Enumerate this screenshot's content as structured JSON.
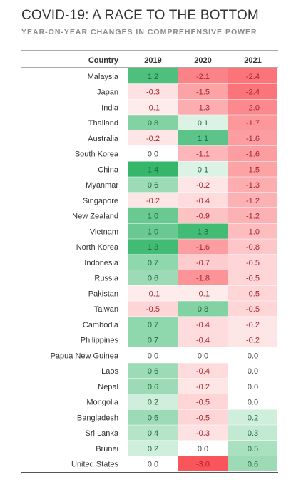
{
  "title": "COVID-19: A RACE TO THE BOTTOM",
  "subtitle": "YEAR-ON-YEAR CHANGES IN COMPREHENSIVE POWER",
  "chart_data": {
    "type": "heatmap",
    "row_header": "Country",
    "columns": [
      "2019",
      "2020",
      "2021"
    ],
    "colors": {
      "positive": "#1fae5b",
      "negative": "#f9484f",
      "positive_text": "#1e6b3d",
      "negative_text": "#a8262b",
      "neutral_text": "#444444"
    },
    "rows": [
      {
        "country": "Malaysia",
        "values": [
          1.2,
          -2.1,
          -2.4
        ]
      },
      {
        "country": "Japan",
        "values": [
          -0.3,
          -1.5,
          -2.4
        ]
      },
      {
        "country": "India",
        "values": [
          -0.1,
          -1.3,
          -2.0
        ]
      },
      {
        "country": "Thailand",
        "values": [
          0.8,
          0.1,
          -1.7
        ]
      },
      {
        "country": "Australia",
        "values": [
          -0.2,
          1.1,
          -1.6
        ]
      },
      {
        "country": "South Korea",
        "values": [
          0.0,
          -1.1,
          -1.6
        ]
      },
      {
        "country": "China",
        "values": [
          1.4,
          0.1,
          -1.5
        ]
      },
      {
        "country": "Myanmar",
        "values": [
          0.6,
          -0.2,
          -1.3
        ]
      },
      {
        "country": "Singapore",
        "values": [
          -0.2,
          -0.4,
          -1.2
        ]
      },
      {
        "country": "New Zealand",
        "values": [
          1.0,
          -0.9,
          -1.2
        ]
      },
      {
        "country": "Vietnam",
        "values": [
          1.0,
          1.3,
          -1.0
        ]
      },
      {
        "country": "North Korea",
        "values": [
          1.3,
          -1.6,
          -0.8
        ]
      },
      {
        "country": "Indonesia",
        "values": [
          0.7,
          -0.7,
          -0.5
        ]
      },
      {
        "country": "Russia",
        "values": [
          0.6,
          -1.8,
          -0.5
        ]
      },
      {
        "country": "Pakistan",
        "values": [
          -0.1,
          -0.1,
          -0.5
        ]
      },
      {
        "country": "Taiwan",
        "values": [
          -0.5,
          0.8,
          -0.5
        ]
      },
      {
        "country": "Cambodia",
        "values": [
          0.7,
          -0.4,
          -0.2
        ]
      },
      {
        "country": "Philippines",
        "values": [
          0.7,
          -0.4,
          -0.2
        ]
      },
      {
        "country": "Papua New Guinea",
        "values": [
          0.0,
          0.0,
          0.0
        ]
      },
      {
        "country": "Laos",
        "values": [
          0.6,
          -0.4,
          0.0
        ]
      },
      {
        "country": "Nepal",
        "values": [
          0.6,
          -0.2,
          0.0
        ]
      },
      {
        "country": "Mongolia",
        "values": [
          0.2,
          -0.5,
          0.0
        ]
      },
      {
        "country": "Bangladesh",
        "values": [
          0.6,
          -0.5,
          0.2
        ]
      },
      {
        "country": "Sri Lanka",
        "values": [
          0.4,
          -0.3,
          0.3
        ]
      },
      {
        "country": "Brunei",
        "values": [
          0.2,
          0.0,
          0.5
        ]
      },
      {
        "country": "United States",
        "values": [
          0.0,
          -3.0,
          0.6
        ]
      }
    ]
  }
}
